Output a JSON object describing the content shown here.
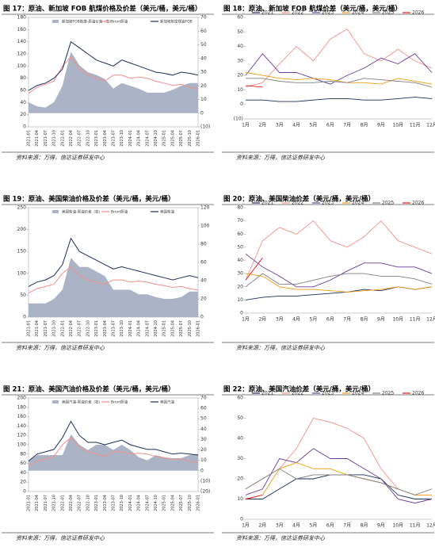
{
  "chart_data": [
    {
      "type": "combo",
      "title": "图 17：原油、新加坡 FOB 航煤价格及价差（美元/桶，美元/桶）",
      "source": "资料来源：万得，信达证券研发中心",
      "legend": "top",
      "categories": [
        "2021-01",
        "2021-04",
        "2021-07",
        "2021-10",
        "2022-01",
        "2022-04",
        "2022-07",
        "2022-10",
        "2023-01",
        "2023-04",
        "2023-07",
        "2023-10",
        "2024-01",
        "2024-04",
        "2024-07",
        "2024-10",
        "2025-01",
        "2025-04",
        "2025-07",
        "2025-10",
        "2026-01"
      ],
      "ylim": [
        0,
        180
      ],
      "yticks": [
        0,
        20,
        40,
        60,
        80,
        100,
        120,
        140,
        160,
        180
      ],
      "y2lim": [
        -10,
        70
      ],
      "y2ticks": [
        {
          "value": -10,
          "label": "(10)"
        },
        0,
        10,
        20,
        30,
        40,
        50,
        60,
        70
      ],
      "series": [
        {
          "name": "新加坡FOB航煤-原油价差（右）",
          "mark": "area",
          "axis": "y2",
          "color": "#aab4c6",
          "values": [
            8,
            5,
            4,
            8,
            20,
            45,
            35,
            30,
            28,
            25,
            18,
            22,
            20,
            18,
            15,
            15,
            15,
            17,
            20,
            22,
            22
          ]
        },
        {
          "name": "Brent原油",
          "mark": "line",
          "color": "#f4908a",
          "values": [
            55,
            65,
            70,
            75,
            100,
            115,
            95,
            85,
            80,
            75,
            85,
            85,
            80,
            82,
            80,
            75,
            72,
            68,
            70,
            65,
            62
          ]
        },
        {
          "name": "新加坡航空煤油FOB",
          "mark": "line",
          "color": "#1c2e5c",
          "values": [
            60,
            68,
            72,
            80,
            95,
            140,
            130,
            120,
            110,
            105,
            100,
            110,
            105,
            100,
            95,
            90,
            88,
            85,
            90,
            88,
            85
          ]
        }
      ]
    },
    {
      "type": "line",
      "title": "图 18：原油、新加坡 FOB 航煤价差（美元/桶，美元/桶）",
      "source": "资料来源：万得，信达证券研发中心",
      "legend": "top",
      "categories": [
        "1月",
        "2月",
        "3月",
        "4月",
        "5月",
        "6月",
        "7月",
        "8月",
        "9月",
        "10月",
        "11月",
        "12月"
      ],
      "ylim": [
        -10,
        60
      ],
      "yticks": [
        {
          "value": -10,
          "label": "(10)"
        },
        0,
        10,
        20,
        30,
        40,
        50,
        60
      ],
      "series": [
        {
          "name": "2021",
          "color": "#1c2e5c",
          "values": [
            3,
            3,
            2,
            2,
            3,
            4,
            4,
            3,
            3,
            4,
            5,
            4
          ]
        },
        {
          "name": "2022",
          "color": "#f4908a",
          "values": [
            12,
            15,
            28,
            40,
            30,
            45,
            52,
            35,
            30,
            38,
            30,
            25
          ]
        },
        {
          "name": "2023",
          "color": "#6a3d9a",
          "values": [
            20,
            35,
            22,
            22,
            18,
            14,
            20,
            25,
            32,
            28,
            35,
            22
          ]
        },
        {
          "name": "2024",
          "color": "#f39c12",
          "values": [
            22,
            20,
            18,
            17,
            18,
            17,
            15,
            15,
            14,
            18,
            16,
            14
          ]
        },
        {
          "name": "2025",
          "color": "#808080",
          "values": [
            18,
            18,
            16,
            15,
            15,
            16,
            15,
            18,
            17,
            16,
            15,
            12
          ]
        },
        {
          "name": "2026",
          "color": "#e41a1c",
          "values": [
            13,
            12,
            null,
            null,
            null,
            null,
            null,
            null,
            null,
            null,
            null,
            null
          ]
        }
      ]
    },
    {
      "type": "combo",
      "title": "图 19：原油、美国柴油价格及价差（美元/桶，美元/桶）",
      "source": "资料来源：万得，信达证券研发中心",
      "legend": "top",
      "categories": [
        "2021-01",
        "2021-04",
        "2021-07",
        "2021-10",
        "2022-01",
        "2022-04",
        "2022-07",
        "2022-10",
        "2023-01",
        "2023-04",
        "2023-07",
        "2023-10",
        "2024-01",
        "2024-04",
        "2024-07",
        "2024-10",
        "2025-01",
        "2025-04",
        "2025-07",
        "2025-10",
        "2026-01"
      ],
      "ylim": [
        0,
        250
      ],
      "yticks": [
        0,
        50,
        100,
        150,
        200,
        250
      ],
      "y2lim": [
        0,
        120
      ],
      "y2ticks": [
        0,
        20,
        40,
        60,
        80,
        100,
        120
      ],
      "series": [
        {
          "name": "美国柴油-原油价差（右）",
          "mark": "area",
          "axis": "y2",
          "color": "#aab4c6",
          "values": [
            15,
            15,
            15,
            20,
            30,
            65,
            55,
            55,
            50,
            45,
            30,
            30,
            30,
            25,
            25,
            22,
            20,
            20,
            22,
            28,
            28
          ]
        },
        {
          "name": "Brent原油",
          "mark": "line",
          "color": "#f4908a",
          "values": [
            55,
            65,
            70,
            75,
            100,
            115,
            95,
            85,
            80,
            75,
            85,
            85,
            80,
            82,
            80,
            75,
            72,
            68,
            70,
            65,
            62
          ]
        },
        {
          "name": "美国柴油",
          "mark": "line",
          "color": "#1c2e5c",
          "values": [
            70,
            80,
            85,
            95,
            120,
            180,
            150,
            140,
            130,
            120,
            110,
            115,
            110,
            105,
            100,
            95,
            90,
            85,
            90,
            95,
            90
          ]
        }
      ]
    },
    {
      "type": "line",
      "title": "图 20：原油、美国柴油价差（美元/桶，美元/桶）",
      "source": "资料来源：万得，信达证券研发中心",
      "legend": "top",
      "categories": [
        "1月",
        "2月",
        "3月",
        "4月",
        "5月",
        "6月",
        "7月",
        "8月",
        "9月",
        "10月",
        "11月",
        "12月"
      ],
      "ylim": [
        0,
        80
      ],
      "yticks": [
        0,
        10,
        20,
        30,
        40,
        50,
        60,
        70,
        80
      ],
      "series": [
        {
          "name": "2021",
          "color": "#1c2e5c",
          "values": [
            10,
            12,
            13,
            13,
            14,
            15,
            16,
            18,
            17,
            20,
            18,
            20
          ]
        },
        {
          "name": "2022",
          "color": "#f4908a",
          "values": [
            25,
            55,
            65,
            60,
            70,
            55,
            50,
            58,
            70,
            55,
            50,
            45
          ]
        },
        {
          "name": "2023",
          "color": "#6a3d9a",
          "values": [
            45,
            35,
            28,
            20,
            20,
            25,
            32,
            38,
            38,
            35,
            35,
            30
          ]
        },
        {
          "name": "2024",
          "color": "#f39c12",
          "values": [
            30,
            28,
            20,
            18,
            18,
            17,
            16,
            17,
            18,
            20,
            18,
            20
          ]
        },
        {
          "name": "2025",
          "color": "#808080",
          "values": [
            20,
            30,
            22,
            22,
            25,
            28,
            30,
            30,
            28,
            28,
            26,
            22
          ]
        },
        {
          "name": "2026",
          "color": "#e41a1c",
          "values": [
            25,
            42,
            null,
            null,
            null,
            null,
            null,
            null,
            null,
            null,
            null,
            null
          ]
        }
      ]
    },
    {
      "type": "combo",
      "title": "图 21：原油、美国汽油价格及价差（美元/桶，美元/桶）",
      "source": "资料来源：万得，信达证券研发中心",
      "legend": "top",
      "categories": [
        "2021-01",
        "2021-04",
        "2021-07",
        "2021-10",
        "2022-01",
        "2022-04",
        "2022-07",
        "2022-10",
        "2023-01",
        "2023-04",
        "2023-07",
        "2023-10",
        "2024-01",
        "2024-04",
        "2024-07",
        "2024-10",
        "2025-01",
        "2025-04",
        "2025-07",
        "2025-10",
        "2026-01"
      ],
      "ylim": [
        0,
        200
      ],
      "yticks": [
        0,
        20,
        40,
        60,
        80,
        100,
        120,
        140,
        160,
        180,
        200
      ],
      "y2lim": [
        -20,
        70
      ],
      "y2ticks": [
        {
          "value": -20,
          "label": "(20)"
        },
        {
          "value": -10,
          "label": "(10)"
        },
        0,
        10,
        20,
        30,
        40,
        50,
        60,
        70
      ],
      "series": [
        {
          "name": "美国汽油-原油价差（右）",
          "mark": "area",
          "axis": "y2",
          "color": "#aab4c6",
          "values": [
            10,
            15,
            15,
            15,
            15,
            35,
            25,
            20,
            25,
            25,
            20,
            25,
            20,
            13,
            10,
            15,
            13,
            12,
            12,
            15,
            16
          ]
        },
        {
          "name": "Brent原油",
          "mark": "line",
          "color": "#f4908a",
          "values": [
            55,
            65,
            70,
            75,
            100,
            115,
            95,
            85,
            80,
            75,
            85,
            85,
            80,
            82,
            80,
            75,
            72,
            68,
            70,
            65,
            62
          ]
        },
        {
          "name": "美国汽油",
          "mark": "line",
          "color": "#1c2e5c",
          "values": [
            65,
            80,
            85,
            90,
            115,
            150,
            120,
            105,
            105,
            100,
            105,
            110,
            100,
            95,
            90,
            90,
            85,
            80,
            82,
            80,
            78
          ]
        }
      ]
    },
    {
      "type": "line",
      "title": "图 22：原油、美国汽油价差（美元/桶，美元/桶）",
      "source": "资料来源：万得，信达证券研发中心",
      "legend": "top",
      "categories": [
        "1月",
        "2月",
        "3月",
        "4月",
        "5月",
        "6月",
        "7月",
        "8月",
        "9月",
        "10月",
        "11月",
        "12月"
      ],
      "ylim": [
        0,
        60
      ],
      "yticks": [
        0,
        10,
        20,
        30,
        40,
        50,
        60
      ],
      "series": [
        {
          "name": "2021",
          "color": "#1c2e5c",
          "values": [
            10,
            10,
            15,
            20,
            20,
            22,
            22,
            22,
            20,
            12,
            10,
            10
          ]
        },
        {
          "name": "2022",
          "color": "#f4908a",
          "values": [
            15,
            20,
            25,
            35,
            50,
            48,
            45,
            40,
            25,
            15,
            12,
            12
          ]
        },
        {
          "name": "2023",
          "color": "#6a3d9a",
          "values": [
            12,
            15,
            30,
            28,
            35,
            30,
            30,
            25,
            20,
            10,
            8,
            10
          ]
        },
        {
          "name": "2024",
          "color": "#f39c12",
          "values": [
            10,
            12,
            25,
            28,
            25,
            25,
            22,
            20,
            18,
            15,
            12,
            12
          ]
        },
        {
          "name": "2025",
          "color": "#808080",
          "values": [
            15,
            20,
            25,
            20,
            22,
            22,
            22,
            20,
            18,
            15,
            12,
            15
          ]
        },
        {
          "name": "2026",
          "color": "#e41a1c",
          "values": [
            10,
            12,
            null,
            null,
            null,
            null,
            null,
            null,
            null,
            null,
            null,
            null
          ]
        }
      ]
    }
  ]
}
